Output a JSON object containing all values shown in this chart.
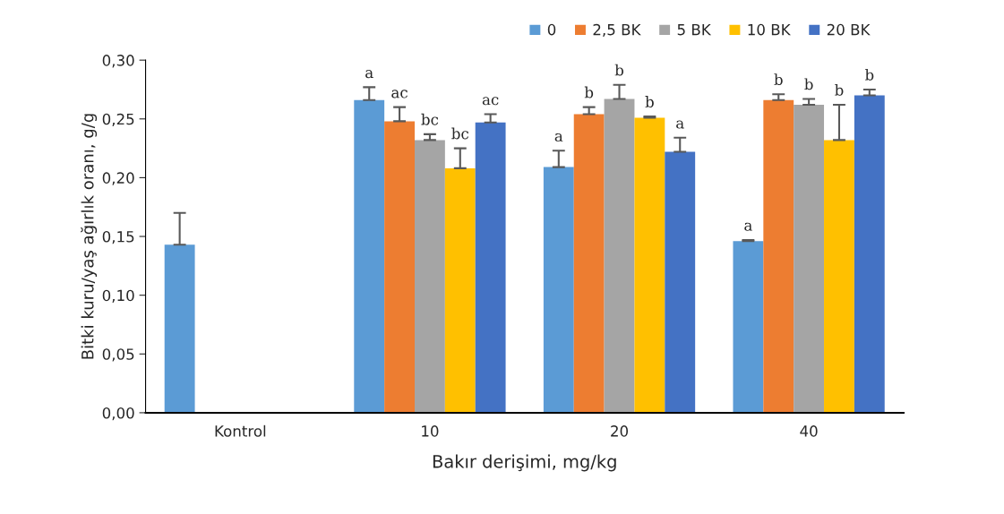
{
  "chart_data": {
    "type": "bar",
    "xlabel": "Bakır derişimi, mg/kg",
    "ylabel": "Bitki kuru/yaş ağırlık oranı, g/g",
    "categories": [
      "Kontrol",
      "10",
      "20",
      "40"
    ],
    "series": [
      {
        "name": "0",
        "color": "#5b9bd5",
        "values": [
          0.143,
          0.266,
          0.209,
          0.146
        ],
        "errors": [
          [
            0.143,
            0.17
          ],
          [
            0.266,
            0.277
          ],
          [
            0.209,
            0.223
          ],
          [
            0.146,
            0.147
          ]
        ]
      },
      {
        "name": "2,5 BK",
        "color": "#ed7d31",
        "values": [
          null,
          0.248,
          0.254,
          0.266
        ],
        "errors": [
          null,
          [
            0.248,
            0.26
          ],
          [
            0.254,
            0.26
          ],
          [
            0.266,
            0.271
          ]
        ]
      },
      {
        "name": "5 BK",
        "color": "#a5a5a5",
        "values": [
          null,
          0.232,
          0.267,
          0.262
        ],
        "errors": [
          null,
          [
            0.232,
            0.237
          ],
          [
            0.267,
            0.279
          ],
          [
            0.262,
            0.267
          ]
        ]
      },
      {
        "name": "10 BK",
        "color": "#ffc000",
        "values": [
          null,
          0.208,
          0.251,
          0.232
        ],
        "errors": [
          null,
          [
            0.208,
            0.225
          ],
          [
            0.251,
            0.252
          ],
          [
            0.232,
            0.262
          ]
        ]
      },
      {
        "name": "20 BK",
        "color": "#4472c4",
        "values": [
          null,
          0.247,
          0.222,
          0.27
        ],
        "errors": [
          null,
          [
            0.247,
            0.254
          ],
          [
            0.222,
            0.234
          ],
          [
            0.27,
            0.275
          ]
        ]
      }
    ],
    "ylim": [
      0,
      0.3
    ],
    "yticks": [
      {
        "value": 0,
        "label": "0,00"
      },
      {
        "value": 0.05,
        "label": "0,05"
      },
      {
        "value": 0.1,
        "label": "0,10"
      },
      {
        "value": 0.15,
        "label": "0,15"
      },
      {
        "value": 0.2,
        "label": "0,20"
      },
      {
        "value": 0.25,
        "label": "0,25"
      },
      {
        "value": 0.3,
        "label": "0,30"
      }
    ],
    "grid": false,
    "legend": "top right",
    "annotations": [
      "a",
      "ac",
      "bc",
      "bc",
      "ac",
      "a",
      "b",
      "b",
      "b",
      "a",
      "a",
      "b",
      "b",
      "b",
      "b"
    ]
  }
}
